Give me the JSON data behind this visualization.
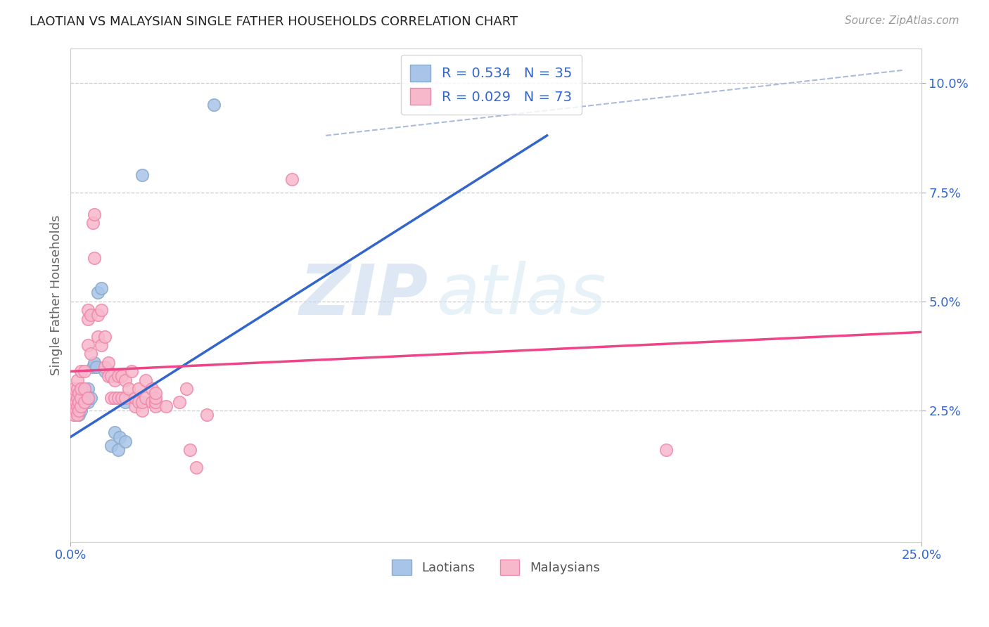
{
  "title": "LAOTIAN VS MALAYSIAN SINGLE FATHER HOUSEHOLDS CORRELATION CHART",
  "source": "Source: ZipAtlas.com",
  "ylabel": "Single Father Households",
  "xlim": [
    0.0,
    0.25
  ],
  "ylim": [
    -0.005,
    0.108
  ],
  "ytick_labels": [
    "2.5%",
    "5.0%",
    "7.5%",
    "10.0%"
  ],
  "ytick_positions": [
    0.025,
    0.05,
    0.075,
    0.1
  ],
  "laotian_R": 0.534,
  "laotian_N": 35,
  "malaysian_R": 0.029,
  "malaysian_N": 73,
  "legend_text_color": "#3366cc",
  "watermark_zip": "ZIP",
  "watermark_atlas": "atlas",
  "laotian_line": [
    0.0,
    0.019,
    0.14,
    0.088
  ],
  "malaysian_line": [
    0.0,
    0.034,
    0.25,
    0.043
  ],
  "diagonal_line": [
    0.075,
    0.088,
    0.245,
    0.103
  ],
  "laotian_points": [
    [
      0.0005,
      0.027
    ],
    [
      0.001,
      0.025
    ],
    [
      0.001,
      0.026
    ],
    [
      0.0012,
      0.024
    ],
    [
      0.0015,
      0.027
    ],
    [
      0.002,
      0.025
    ],
    [
      0.002,
      0.026
    ],
    [
      0.002,
      0.027
    ],
    [
      0.0025,
      0.024
    ],
    [
      0.003,
      0.025
    ],
    [
      0.003,
      0.026
    ],
    [
      0.003,
      0.027
    ],
    [
      0.003,
      0.028
    ],
    [
      0.004,
      0.027
    ],
    [
      0.004,
      0.028
    ],
    [
      0.004,
      0.0295
    ],
    [
      0.005,
      0.027
    ],
    [
      0.005,
      0.028
    ],
    [
      0.005,
      0.03
    ],
    [
      0.006,
      0.028
    ],
    [
      0.0065,
      0.035
    ],
    [
      0.007,
      0.036
    ],
    [
      0.0075,
      0.035
    ],
    [
      0.008,
      0.052
    ],
    [
      0.009,
      0.053
    ],
    [
      0.01,
      0.034
    ],
    [
      0.011,
      0.034
    ],
    [
      0.012,
      0.017
    ],
    [
      0.013,
      0.02
    ],
    [
      0.014,
      0.016
    ],
    [
      0.0145,
      0.019
    ],
    [
      0.016,
      0.018
    ],
    [
      0.016,
      0.027
    ],
    [
      0.021,
      0.079
    ],
    [
      0.042,
      0.095
    ]
  ],
  "malaysian_points": [
    [
      0.0005,
      0.025
    ],
    [
      0.001,
      0.024
    ],
    [
      0.001,
      0.026
    ],
    [
      0.001,
      0.028
    ],
    [
      0.001,
      0.03
    ],
    [
      0.0015,
      0.025
    ],
    [
      0.0015,
      0.027
    ],
    [
      0.002,
      0.024
    ],
    [
      0.002,
      0.026
    ],
    [
      0.002,
      0.028
    ],
    [
      0.002,
      0.03
    ],
    [
      0.002,
      0.032
    ],
    [
      0.0025,
      0.025
    ],
    [
      0.0025,
      0.027
    ],
    [
      0.0025,
      0.029
    ],
    [
      0.003,
      0.026
    ],
    [
      0.003,
      0.028
    ],
    [
      0.003,
      0.03
    ],
    [
      0.003,
      0.034
    ],
    [
      0.004,
      0.027
    ],
    [
      0.004,
      0.03
    ],
    [
      0.004,
      0.034
    ],
    [
      0.005,
      0.028
    ],
    [
      0.005,
      0.04
    ],
    [
      0.005,
      0.046
    ],
    [
      0.005,
      0.048
    ],
    [
      0.006,
      0.038
    ],
    [
      0.006,
      0.047
    ],
    [
      0.0065,
      0.068
    ],
    [
      0.007,
      0.07
    ],
    [
      0.007,
      0.06
    ],
    [
      0.008,
      0.042
    ],
    [
      0.008,
      0.047
    ],
    [
      0.009,
      0.04
    ],
    [
      0.009,
      0.048
    ],
    [
      0.01,
      0.035
    ],
    [
      0.01,
      0.042
    ],
    [
      0.011,
      0.033
    ],
    [
      0.011,
      0.036
    ],
    [
      0.012,
      0.028
    ],
    [
      0.012,
      0.033
    ],
    [
      0.013,
      0.028
    ],
    [
      0.013,
      0.032
    ],
    [
      0.014,
      0.028
    ],
    [
      0.014,
      0.033
    ],
    [
      0.015,
      0.028
    ],
    [
      0.015,
      0.033
    ],
    [
      0.016,
      0.028
    ],
    [
      0.016,
      0.032
    ],
    [
      0.017,
      0.03
    ],
    [
      0.018,
      0.034
    ],
    [
      0.019,
      0.026
    ],
    [
      0.019,
      0.028
    ],
    [
      0.02,
      0.027
    ],
    [
      0.02,
      0.03
    ],
    [
      0.021,
      0.025
    ],
    [
      0.021,
      0.027
    ],
    [
      0.022,
      0.028
    ],
    [
      0.022,
      0.032
    ],
    [
      0.024,
      0.027
    ],
    [
      0.024,
      0.03
    ],
    [
      0.025,
      0.026
    ],
    [
      0.025,
      0.027
    ],
    [
      0.025,
      0.028
    ],
    [
      0.025,
      0.029
    ],
    [
      0.028,
      0.026
    ],
    [
      0.032,
      0.027
    ],
    [
      0.034,
      0.03
    ],
    [
      0.035,
      0.016
    ],
    [
      0.037,
      0.012
    ],
    [
      0.04,
      0.024
    ],
    [
      0.065,
      0.078
    ],
    [
      0.175,
      0.016
    ]
  ],
  "laotian_line_color": "#3366cc",
  "malaysian_line_color": "#ee4488",
  "diagonal_line_color": "#aabbdd",
  "grid_color": "#cccccc",
  "background_color": "#ffffff",
  "laotian_marker_color": "#a8c4e8",
  "laotian_marker_edge": "#88aacc",
  "malaysian_marker_color": "#f8b8cc",
  "malaysian_marker_edge": "#ee88aa"
}
